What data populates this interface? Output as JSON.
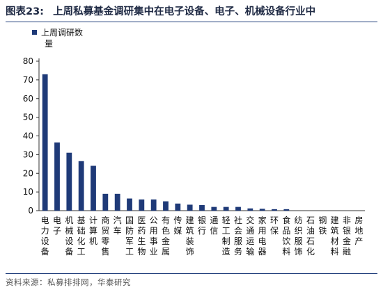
{
  "figure": {
    "number": "图表23:",
    "title": "上周私募基金调研集中在电子设备、电子、机械设备行业中"
  },
  "source": "资料来源：私募排排网，华泰研究",
  "chart_data": {
    "type": "bar",
    "legend": "上周调研数",
    "legend_wrap": "量",
    "ylim": [
      0,
      80
    ],
    "yticks": [
      0,
      10,
      20,
      30,
      40,
      50,
      60,
      70,
      80
    ],
    "categories": [
      "电力设备",
      "电子",
      "机械设备",
      "基础化工",
      "计算机",
      "商贸零售",
      "汽车",
      "国防军工",
      "医药生物",
      "公用事业",
      "有色金属",
      "传媒",
      "建筑装饰",
      "银行",
      "通信",
      "轻工制造",
      "社会服务",
      "交通运输",
      "家用电器",
      "环保",
      "食品饮料",
      "纺织服饰",
      "石油石化",
      "钢铁",
      "建筑材料",
      "非银金融",
      "房地产"
    ],
    "values": [
      73,
      36.5,
      31,
      26.5,
      24,
      9,
      9,
      6.5,
      6,
      6,
      5,
      3.8,
      3.2,
      3,
      2,
      2,
      2,
      1.2,
      1,
      0.8,
      0.8,
      0,
      0,
      0,
      0,
      0,
      0
    ],
    "colors": {
      "bar": "#1f3a78",
      "axis": "#333333"
    }
  }
}
